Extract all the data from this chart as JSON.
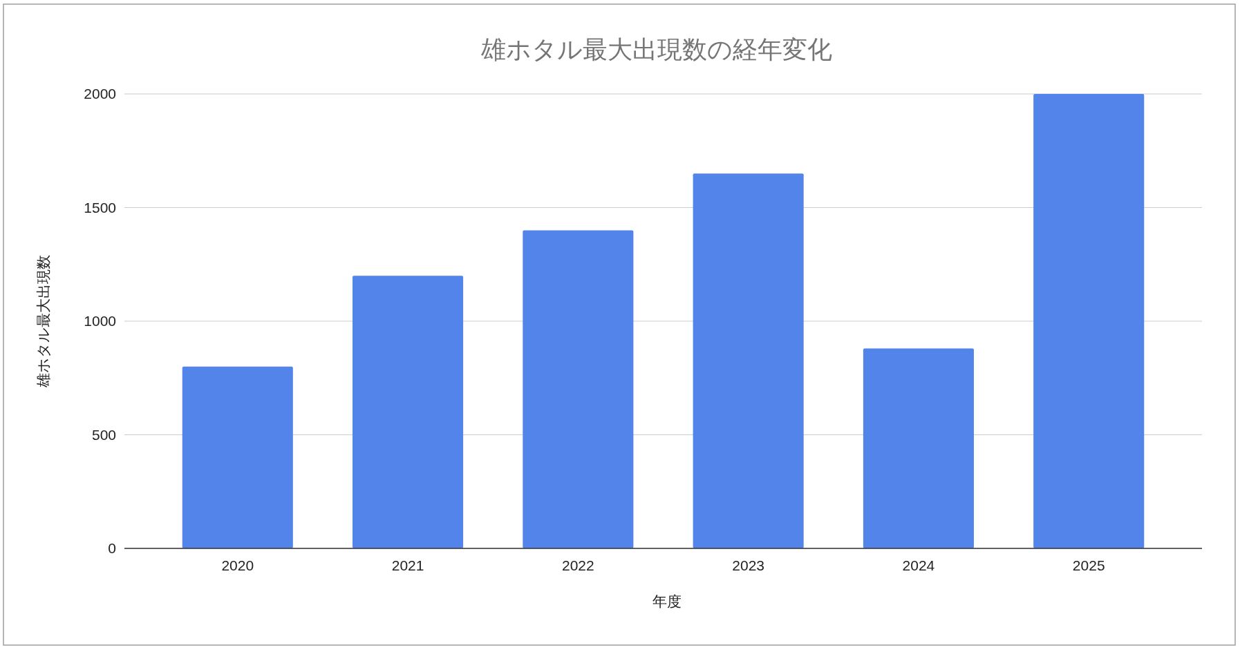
{
  "chart_data": {
    "type": "bar",
    "title": "雄ホタル最大出現数の経年変化",
    "xlabel": "年度",
    "ylabel": "雄ホタル最大出現数",
    "categories": [
      "2020",
      "2021",
      "2022",
      "2023",
      "2024",
      "2025"
    ],
    "values": [
      800,
      1200,
      1400,
      1650,
      880,
      2000
    ],
    "color": "#5384ea",
    "ylim": [
      0,
      2000
    ],
    "yticks": [
      0,
      500,
      1000,
      1500,
      2000
    ],
    "grid": "y"
  }
}
